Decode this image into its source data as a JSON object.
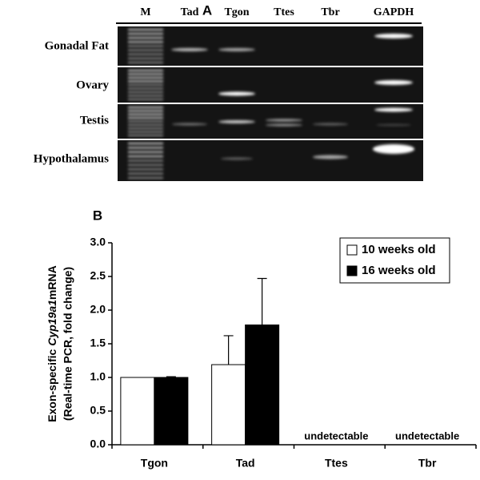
{
  "gel": {
    "panel_label": "A",
    "lanes": [
      "M",
      "Tad",
      "Tgon",
      "Ttes",
      "Tbr",
      "GAPDH"
    ],
    "rows": [
      "Gonadal Fat",
      "Ovary",
      "Testis",
      "Hypothalamus"
    ]
  },
  "chart_data": {
    "type": "bar",
    "panel_label": "B",
    "y_label": [
      "Exon-specific",
      "Cyp19a1",
      "mRNA"
    ],
    "y_label_line2": "(Real-time PCR, fold change)",
    "categories": [
      "Tgon",
      "Tad",
      "Ttes",
      "Tbr"
    ],
    "series": [
      {
        "name": "10 weeks old",
        "color": "#ffffff",
        "values": [
          1.0,
          1.19,
          null,
          null
        ],
        "errors": [
          null,
          0.43,
          null,
          null
        ]
      },
      {
        "name": "16 weeks old",
        "color": "#000000",
        "values": [
          1.0,
          1.78,
          null,
          null
        ],
        "errors": [
          0.01,
          0.69,
          null,
          null
        ]
      }
    ],
    "annotations": [
      null,
      null,
      "undetectable",
      "undetectable"
    ],
    "ylim": [
      0,
      3
    ],
    "yticks": [
      {
        "value": 0,
        "label": "0.0"
      },
      {
        "value": 0.5,
        "label": "0.5"
      },
      {
        "value": 1,
        "label": "1.0"
      },
      {
        "value": 1.5,
        "label": "1.5"
      },
      {
        "value": 2,
        "label": "2.0"
      },
      {
        "value": 2.5,
        "label": "2.5"
      },
      {
        "value": 3,
        "label": "3.0"
      }
    ],
    "legend": "top-right"
  }
}
